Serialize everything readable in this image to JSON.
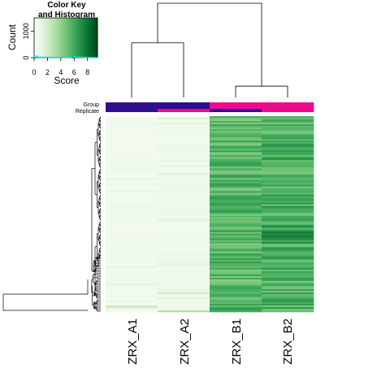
{
  "chart_data": {
    "type": "heatmap",
    "columns": [
      "ZRX_A1",
      "ZRX_A2",
      "ZRX_B1",
      "ZRX_B2"
    ],
    "column_dendrogram": {
      "merges": [
        {
          "left": "ZRX_B1",
          "right": "ZRX_B2",
          "height": 0.12
        },
        {
          "left": "ZRX_A1",
          "right": "ZRX_A2",
          "height": 0.58
        },
        {
          "left": "A",
          "right": "B",
          "height": 1.0
        }
      ]
    },
    "annotations": [
      {
        "label": "Group",
        "colors": [
          "#2e0d91",
          "#2e0d91",
          "#ee0a8c",
          "#ee0a8c"
        ]
      },
      {
        "label": "Replicate",
        "colors": [
          "#2e0d91",
          "#ee0a8c",
          "#2e0d91",
          "#ee0a8c"
        ]
      }
    ],
    "color_key": {
      "title_lines": [
        "Color Key",
        "and Histogram"
      ],
      "xlabel": "Score",
      "ylabel": "Count",
      "x_ticks": [
        0,
        2,
        4,
        6,
        8
      ],
      "y_ticks": [
        0,
        1000
      ],
      "range": [
        0,
        9.5
      ],
      "colors": [
        "#f7fcf5",
        "#e5f5e0",
        "#c7e9c0",
        "#a1d99b",
        "#74c476",
        "#41ab5d",
        "#238b45",
        "#006d2c",
        "#00441b"
      ],
      "histogram": {
        "bin_centers": [
          0.25,
          0.75,
          5.25,
          5.75,
          6.25
        ],
        "counts": [
          60,
          15,
          10,
          45,
          20
        ],
        "ymax": 1500
      }
    },
    "heatmap_rows": 120,
    "group_means": {
      "A1": 0.25,
      "A2": 0.35,
      "B1": 5.3,
      "B2": 5.6
    }
  }
}
